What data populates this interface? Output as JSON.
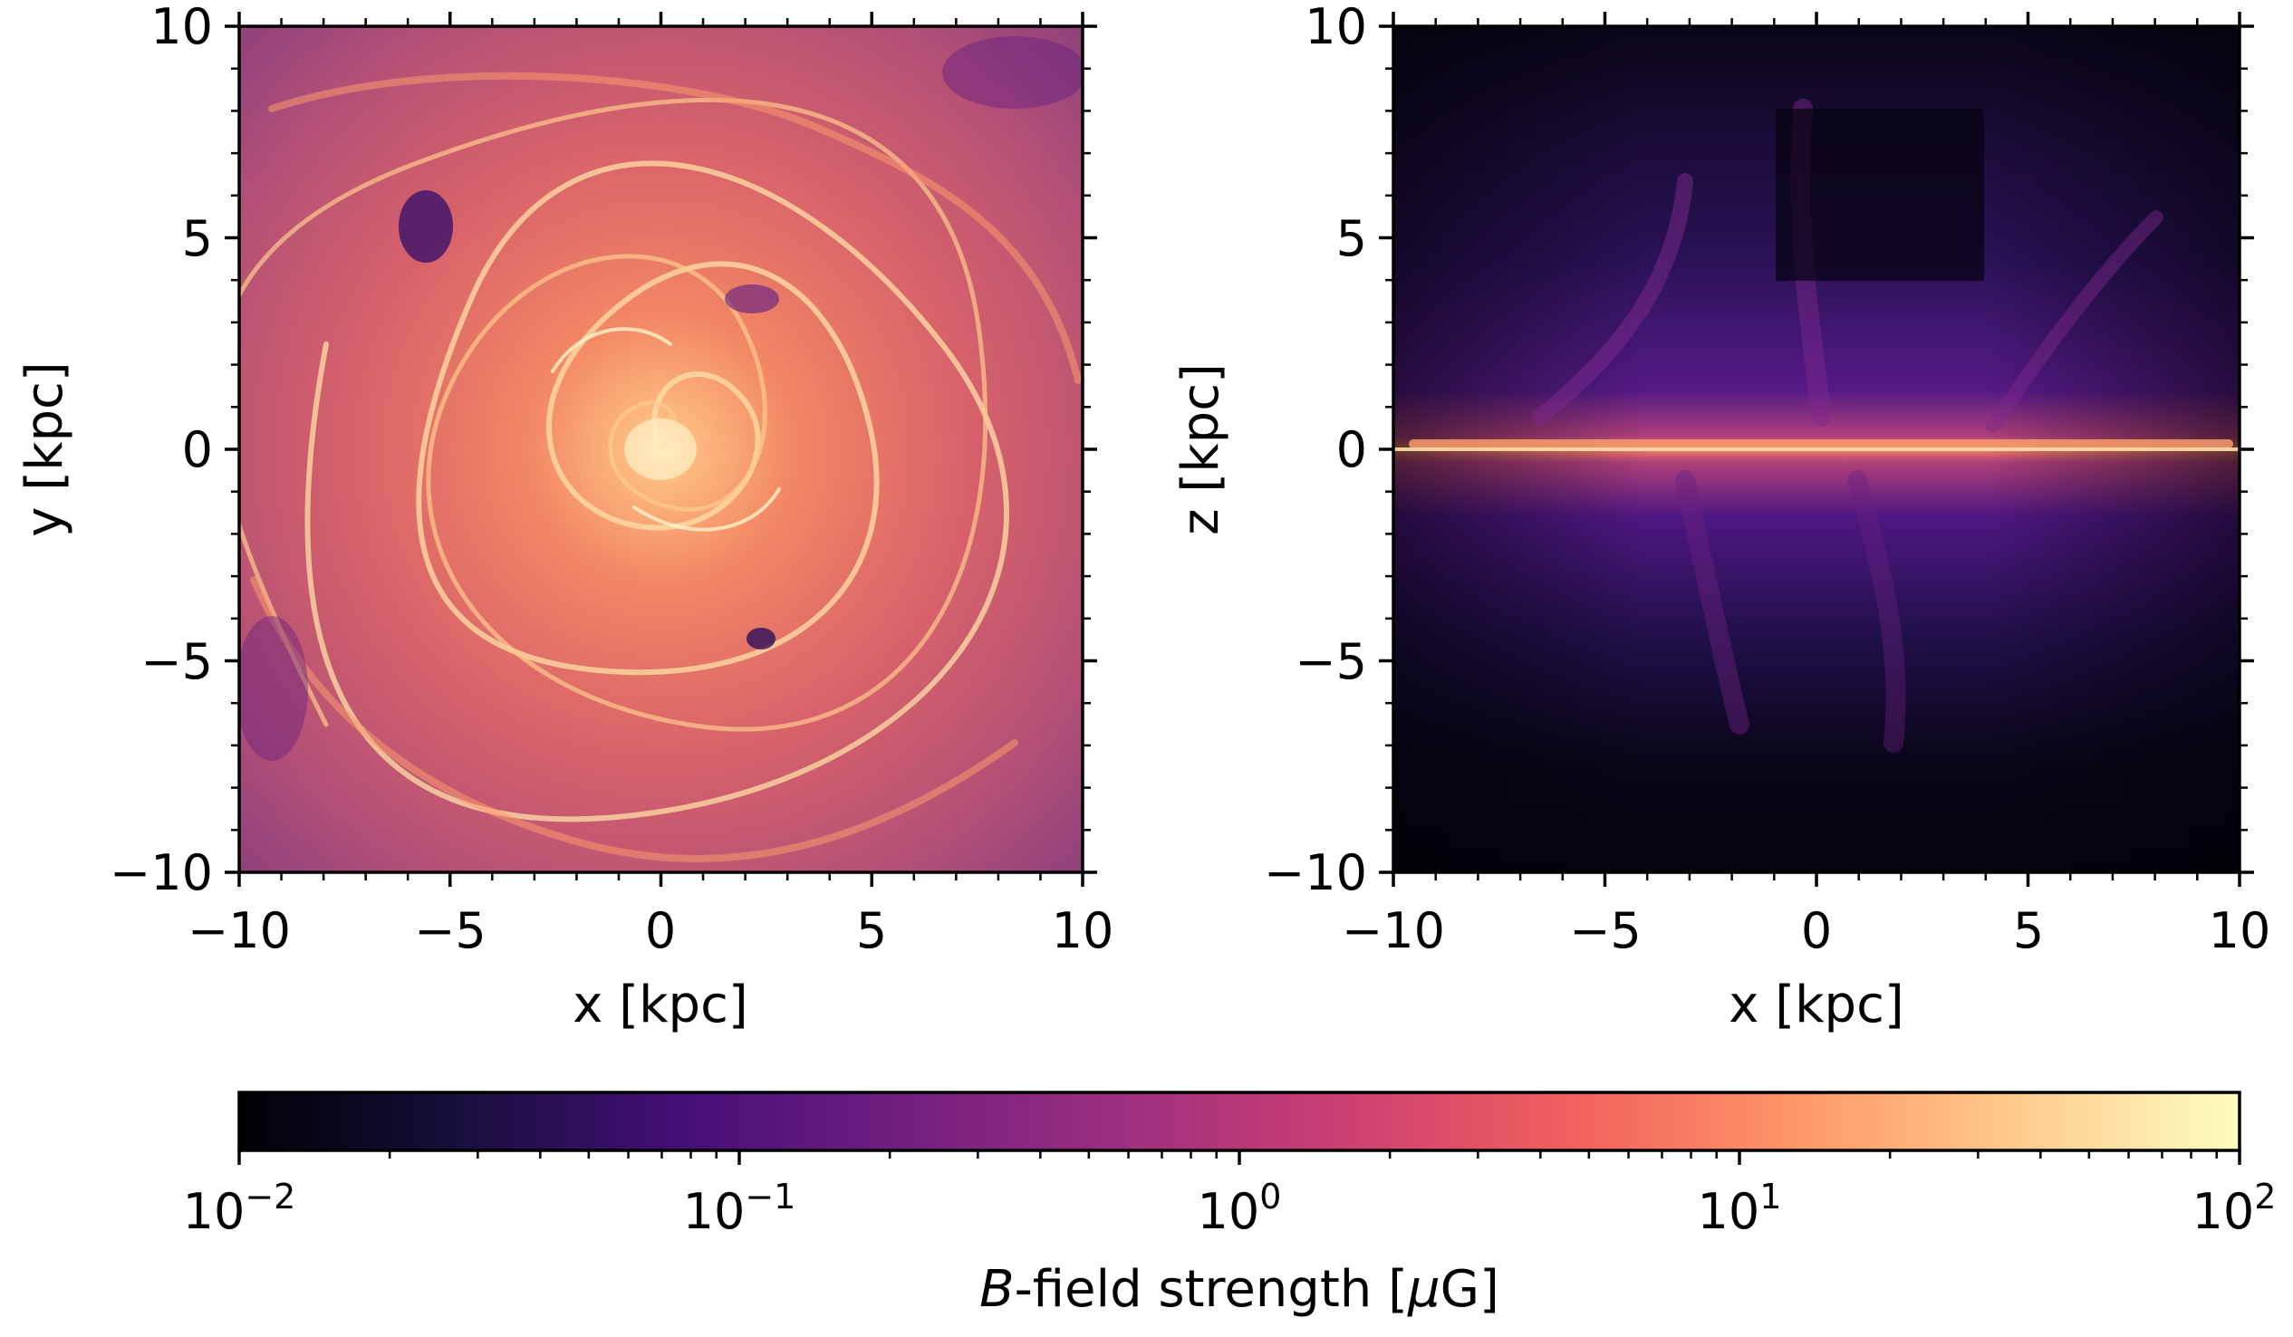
{
  "chart_data": [
    {
      "type": "heatmap",
      "panel": "face-on",
      "xlabel": "x [kpc]",
      "ylabel": "y [kpc]",
      "xlim": [
        -10,
        10
      ],
      "ylim": [
        -10,
        10
      ],
      "xticks": [
        -10,
        -5,
        0,
        5,
        10
      ],
      "yticks": [
        -10,
        -5,
        0,
        5,
        10
      ],
      "xtick_labels": [
        "−10",
        "−5",
        "0",
        "5",
        "10"
      ],
      "ytick_labels": [
        "−10",
        "−5",
        "0",
        "5",
        "10"
      ],
      "description_values": {
        "center_strength_uG": 50,
        "outskirt_strength_uG": 0.5
      }
    },
    {
      "type": "heatmap",
      "panel": "edge-on",
      "xlabel": "x [kpc]",
      "ylabel": "z [kpc]",
      "xlim": [
        -10,
        10
      ],
      "ylim": [
        -10,
        10
      ],
      "xticks": [
        -10,
        -5,
        0,
        5,
        10
      ],
      "yticks": [
        -10,
        -5,
        0,
        5,
        10
      ],
      "xtick_labels": [
        "−10",
        "−5",
        "0",
        "5",
        "10"
      ],
      "ytick_labels": [
        "−10",
        "−5",
        "0",
        "5",
        "10"
      ],
      "description_values": {
        "midplane_strength_uG": 10,
        "halo_strength_uG": 0.02
      }
    }
  ],
  "colorbar": {
    "label_italic": "B",
    "label_rest": "-field strength [",
    "label_mu": "μ",
    "label_end": "G]",
    "scale": "log",
    "range": [
      0.01,
      100
    ],
    "colormap": "magma",
    "tick_base": "10",
    "tick_exponents": [
      "−2",
      "−1",
      "0",
      "1",
      "2"
    ],
    "colors": [
      "#000004",
      "#180f3d",
      "#440f76",
      "#721f81",
      "#9e2f7f",
      "#cd4071",
      "#f1605d",
      "#fd9668",
      "#feca8d",
      "#fcfdbf"
    ]
  }
}
